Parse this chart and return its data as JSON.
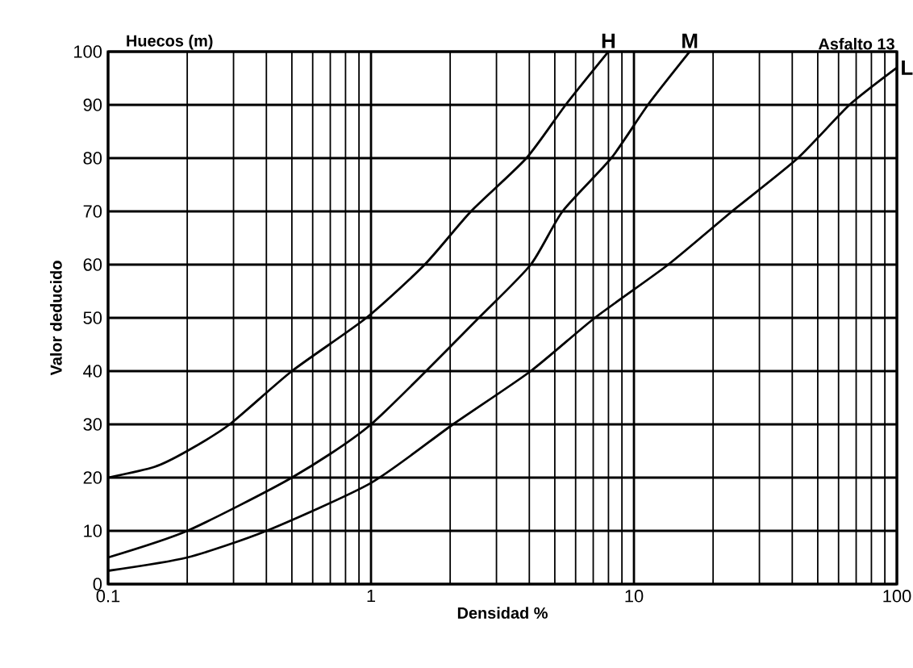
{
  "chart_data": {
    "type": "line",
    "title": "Huecos (m)",
    "subtitle": "Asfalto 13",
    "xlabel": "Densidad %",
    "ylabel": "Valor deducido",
    "log": "x",
    "grid": true,
    "legend": "top right",
    "marker": "none",
    "line_style": "solid",
    "xlim": [
      0.1,
      100
    ],
    "ylim": [
      0,
      100
    ],
    "xticks": [
      0.1,
      1,
      10,
      100
    ],
    "yticks": [
      0,
      10,
      20,
      30,
      40,
      50,
      60,
      70,
      80,
      90,
      100
    ],
    "series": [
      {
        "name": "H",
        "color": "#000000",
        "x": [
          0.1,
          0.15,
          0.2,
          0.29,
          0.5,
          0.96,
          1.6,
          2.4,
          3.9,
          5.5,
          8
        ],
        "values": [
          20,
          22,
          25,
          30,
          40,
          50,
          60,
          70,
          80,
          90,
          100
        ]
      },
      {
        "name": "M",
        "color": "#000000",
        "x": [
          0.1,
          0.2,
          0.5,
          1,
          2.57,
          4.05,
          5.35,
          8.2,
          11.3,
          16.3
        ],
        "values": [
          5,
          10,
          20,
          30,
          50,
          60,
          70,
          80,
          90,
          100
        ]
      },
      {
        "name": "L",
        "color": "#000000",
        "x": [
          0.1,
          0.2,
          0.4,
          1,
          2.05,
          4.05,
          7.1,
          13.5,
          23.6,
          42,
          66,
          100
        ],
        "values": [
          2.5,
          5,
          10,
          19,
          30,
          40,
          50,
          60,
          70,
          80,
          90,
          97
        ]
      }
    ]
  }
}
